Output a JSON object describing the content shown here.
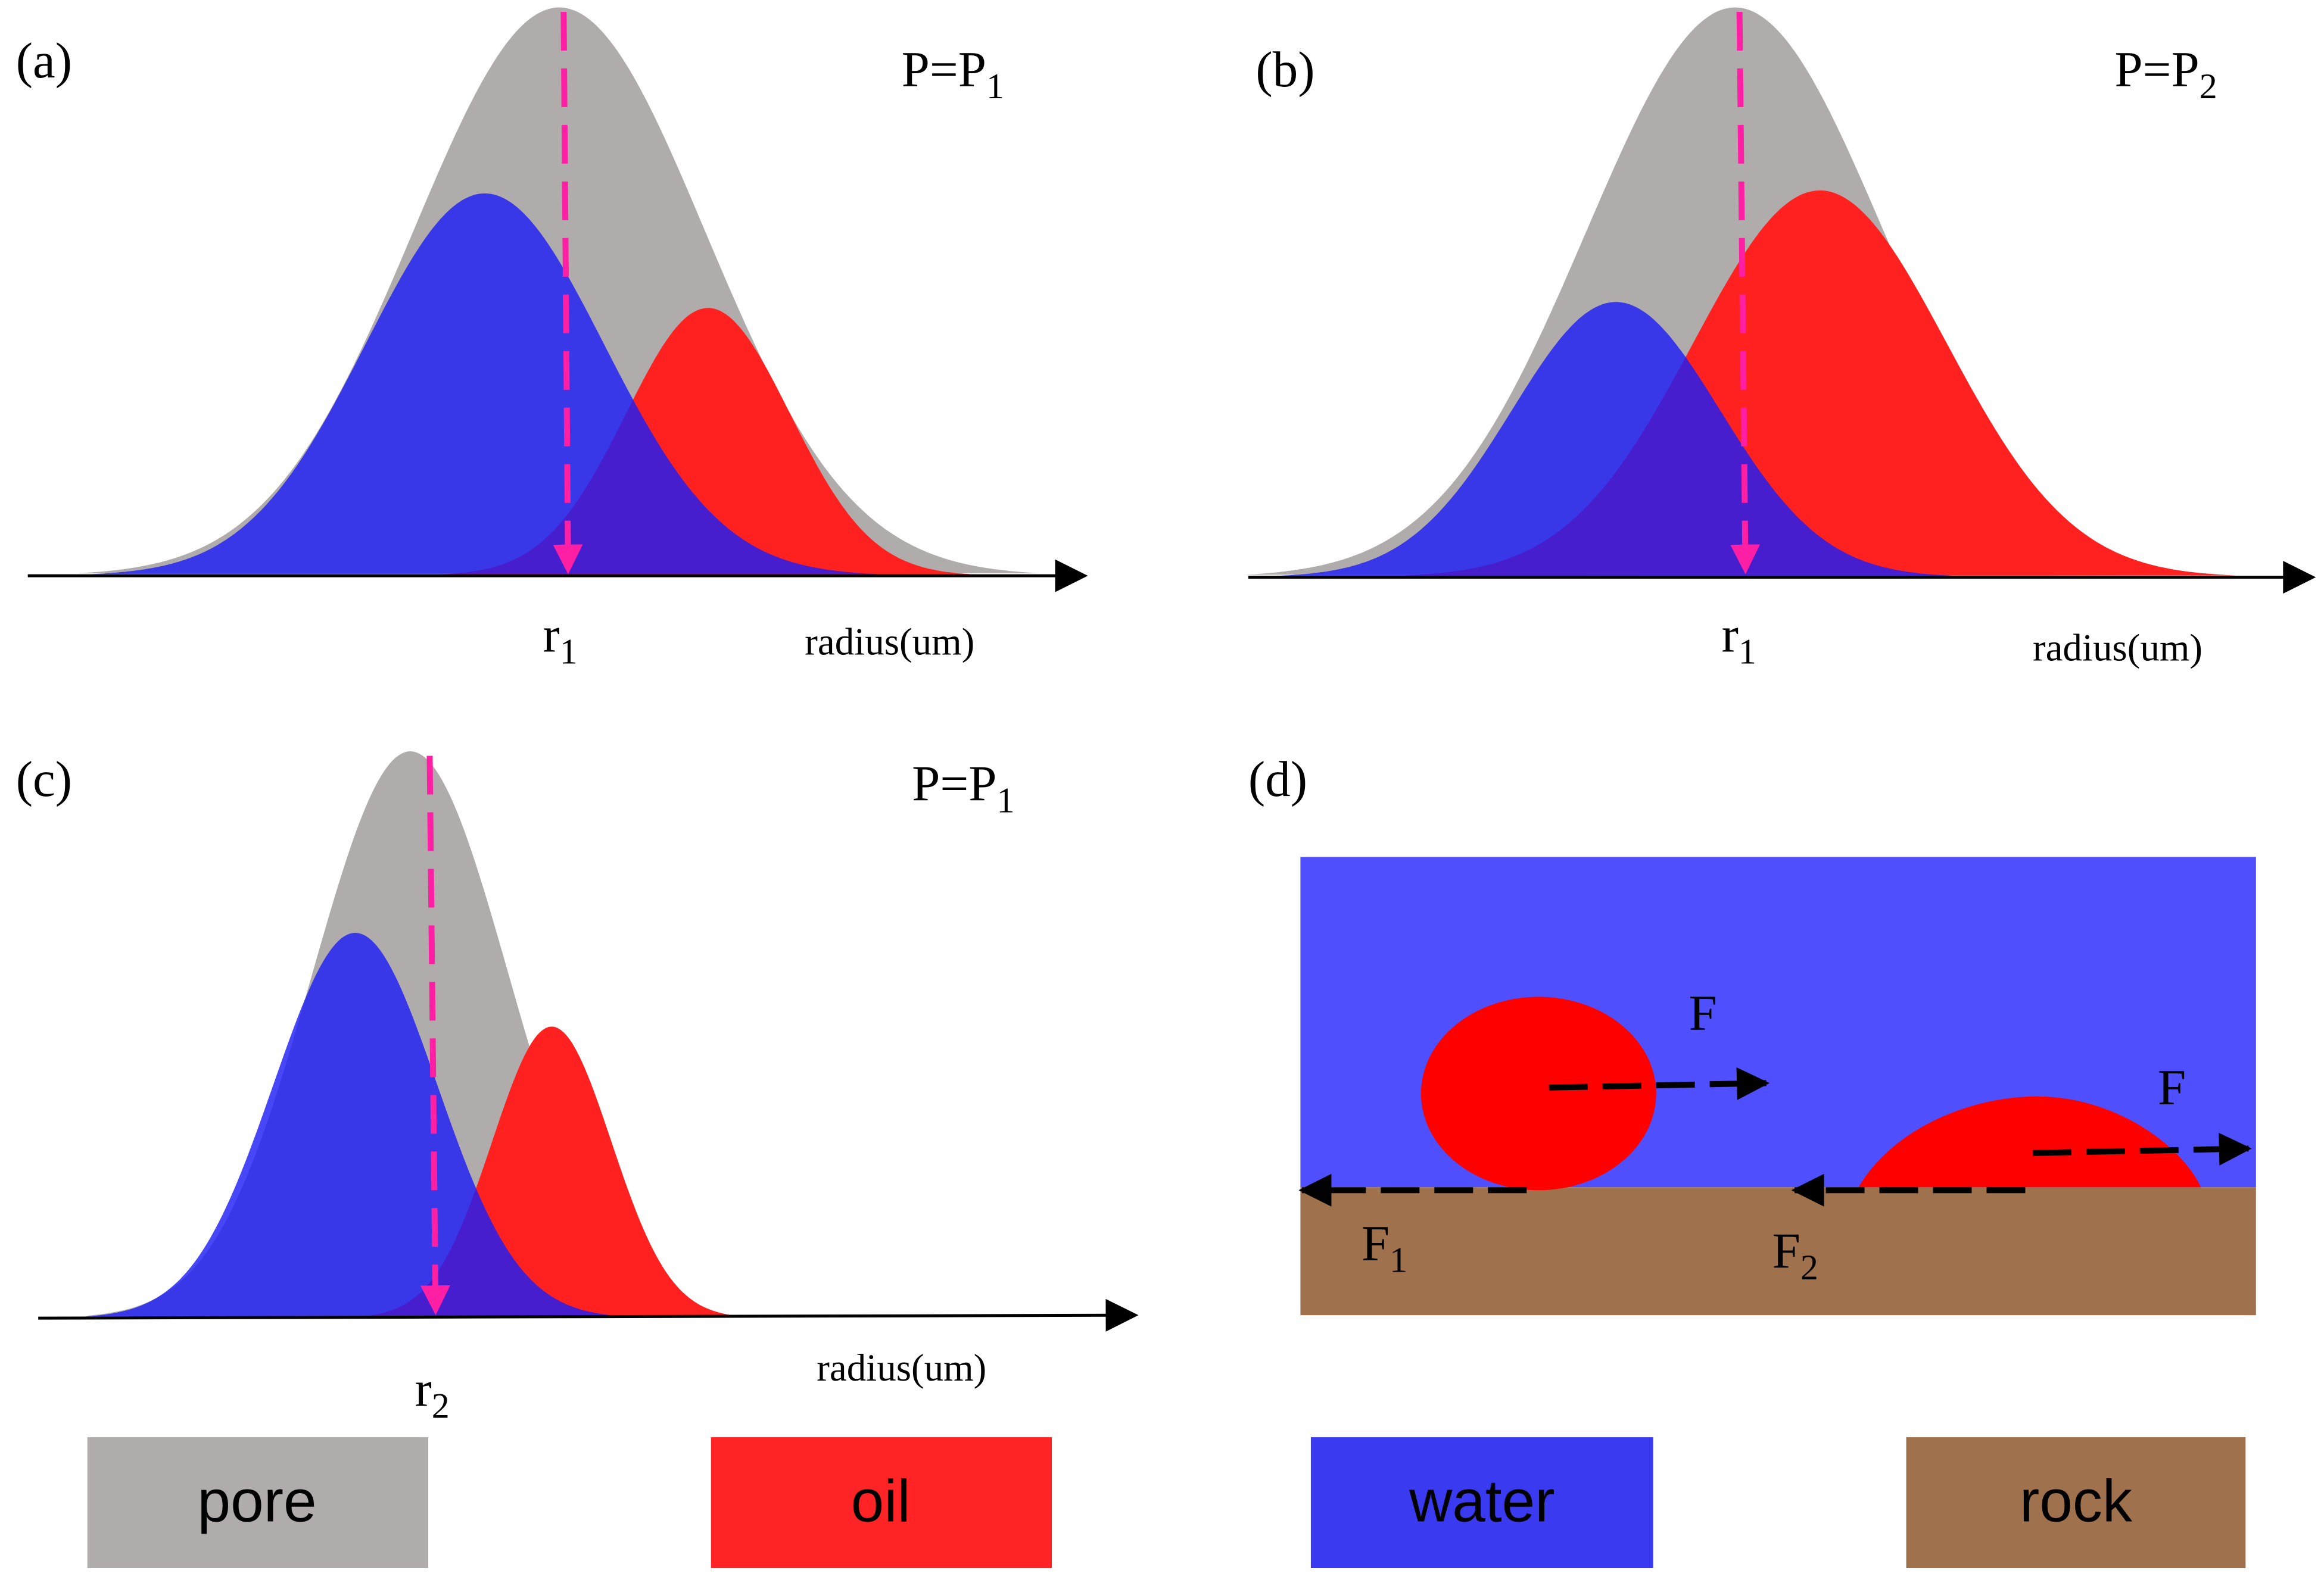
{
  "panels": [
    {
      "label": "(a)",
      "pressure": {
        "text": "P=P",
        "sub": "1"
      },
      "radius": {
        "text": "r",
        "sub": "1"
      },
      "axis_label": "radius(um)"
    },
    {
      "label": "(b)",
      "pressure": {
        "text": "P=P",
        "sub": "2"
      },
      "radius": {
        "text": "r",
        "sub": "1"
      },
      "axis_label": "radius(um)"
    },
    {
      "label": "(c)",
      "pressure": {
        "text": "P=P",
        "sub": "1"
      },
      "radius": {
        "text": "r",
        "sub": "2"
      },
      "axis_label": "radius(um)"
    }
  ],
  "panel_d": {
    "label": "(d)",
    "forces": [
      {
        "text": "F"
      },
      {
        "text": "F"
      },
      {
        "text": "F",
        "sub": "1"
      },
      {
        "text": "F",
        "sub": "2"
      }
    ]
  },
  "legend": [
    "pore",
    "oil",
    "water",
    "rock"
  ]
}
